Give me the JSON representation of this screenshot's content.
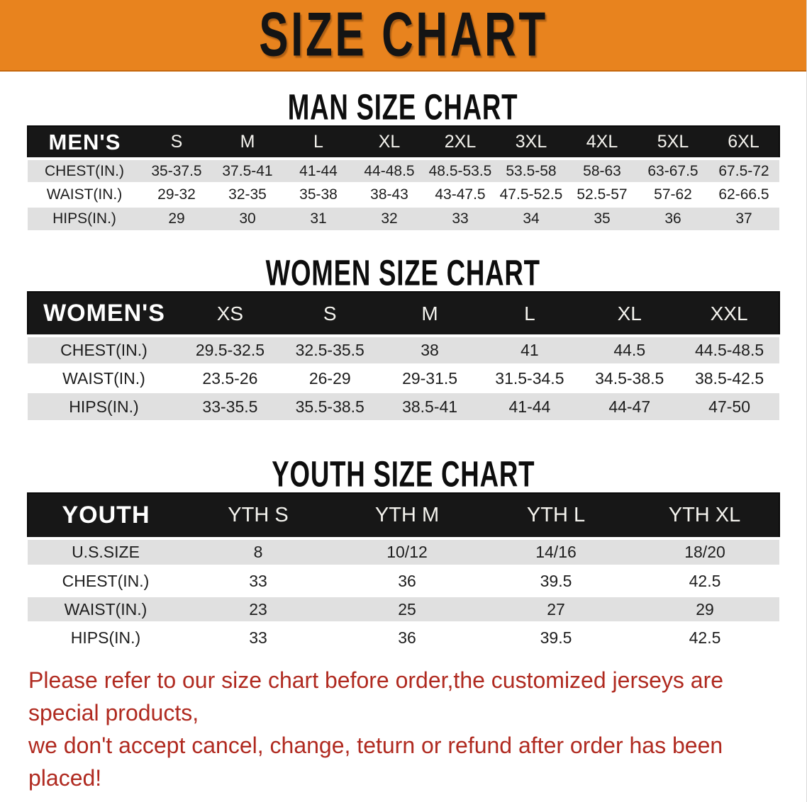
{
  "banner": {
    "title": "SIZE CHART",
    "bg_color": "#E8831E",
    "text_color": "#141414"
  },
  "sections": {
    "men": {
      "heading": "MAN SIZE CHART",
      "table": {
        "header": [
          "MEN'S",
          "S",
          "M",
          "L",
          "XL",
          "2XL",
          "3XL",
          "4XL",
          "5XL",
          "6XL"
        ],
        "rows": [
          [
            "CHEST(IN.)",
            "35-37.5",
            "37.5-41",
            "41-44",
            "44-48.5",
            "48.5-53.5",
            "53.5-58",
            "58-63",
            "63-67.5",
            "67.5-72"
          ],
          [
            "WAIST(IN.)",
            "29-32",
            "32-35",
            "35-38",
            "38-43",
            "43-47.5",
            "47.5-52.5",
            "52.5-57",
            "57-62",
            "62-66.5"
          ],
          [
            "HIPS(IN.)",
            "29",
            "30",
            "31",
            "32",
            "33",
            "34",
            "35",
            "36",
            "37"
          ]
        ]
      }
    },
    "women": {
      "heading": "WOMEN SIZE CHART",
      "table": {
        "header": [
          "WOMEN'S",
          "XS",
          "S",
          "M",
          "L",
          "XL",
          "XXL"
        ],
        "rows": [
          [
            "CHEST(IN.)",
            "29.5-32.5",
            "32.5-35.5",
            "38",
            "41",
            "44.5",
            "44.5-48.5"
          ],
          [
            "WAIST(IN.)",
            "23.5-26",
            "26-29",
            "29-31.5",
            "31.5-34.5",
            "34.5-38.5",
            "38.5-42.5"
          ],
          [
            "HIPS(IN.)",
            "33-35.5",
            "35.5-38.5",
            "38.5-41",
            "41-44",
            "44-47",
            "47-50"
          ]
        ]
      }
    },
    "youth": {
      "heading": "YOUTH SIZE CHART",
      "table": {
        "header": [
          "YOUTH",
          "YTH S",
          "YTH M",
          "YTH L",
          "YTH XL"
        ],
        "rows": [
          [
            "U.S.SIZE",
            "8",
            "10/12",
            "14/16",
            "18/20"
          ],
          [
            "CHEST(IN.)",
            "33",
            "36",
            "39.5",
            "42.5"
          ],
          [
            "WAIST(IN.)",
            "23",
            "25",
            "27",
            "29"
          ],
          [
            "HIPS(IN.)",
            "33",
            "36",
            "39.5",
            "42.5"
          ]
        ]
      }
    }
  },
  "disclaimer": {
    "line1": "Please refer to our size chart before order,the customized jerseys are special products,",
    "line2": "we don't accept cancel, change, teturn or refund after order has been placed!",
    "color": "#B02A20"
  },
  "colors": {
    "row_alt_gray": "#E0E0E0",
    "header_bar_black": "#171717",
    "banner_orange": "#E8831E"
  }
}
